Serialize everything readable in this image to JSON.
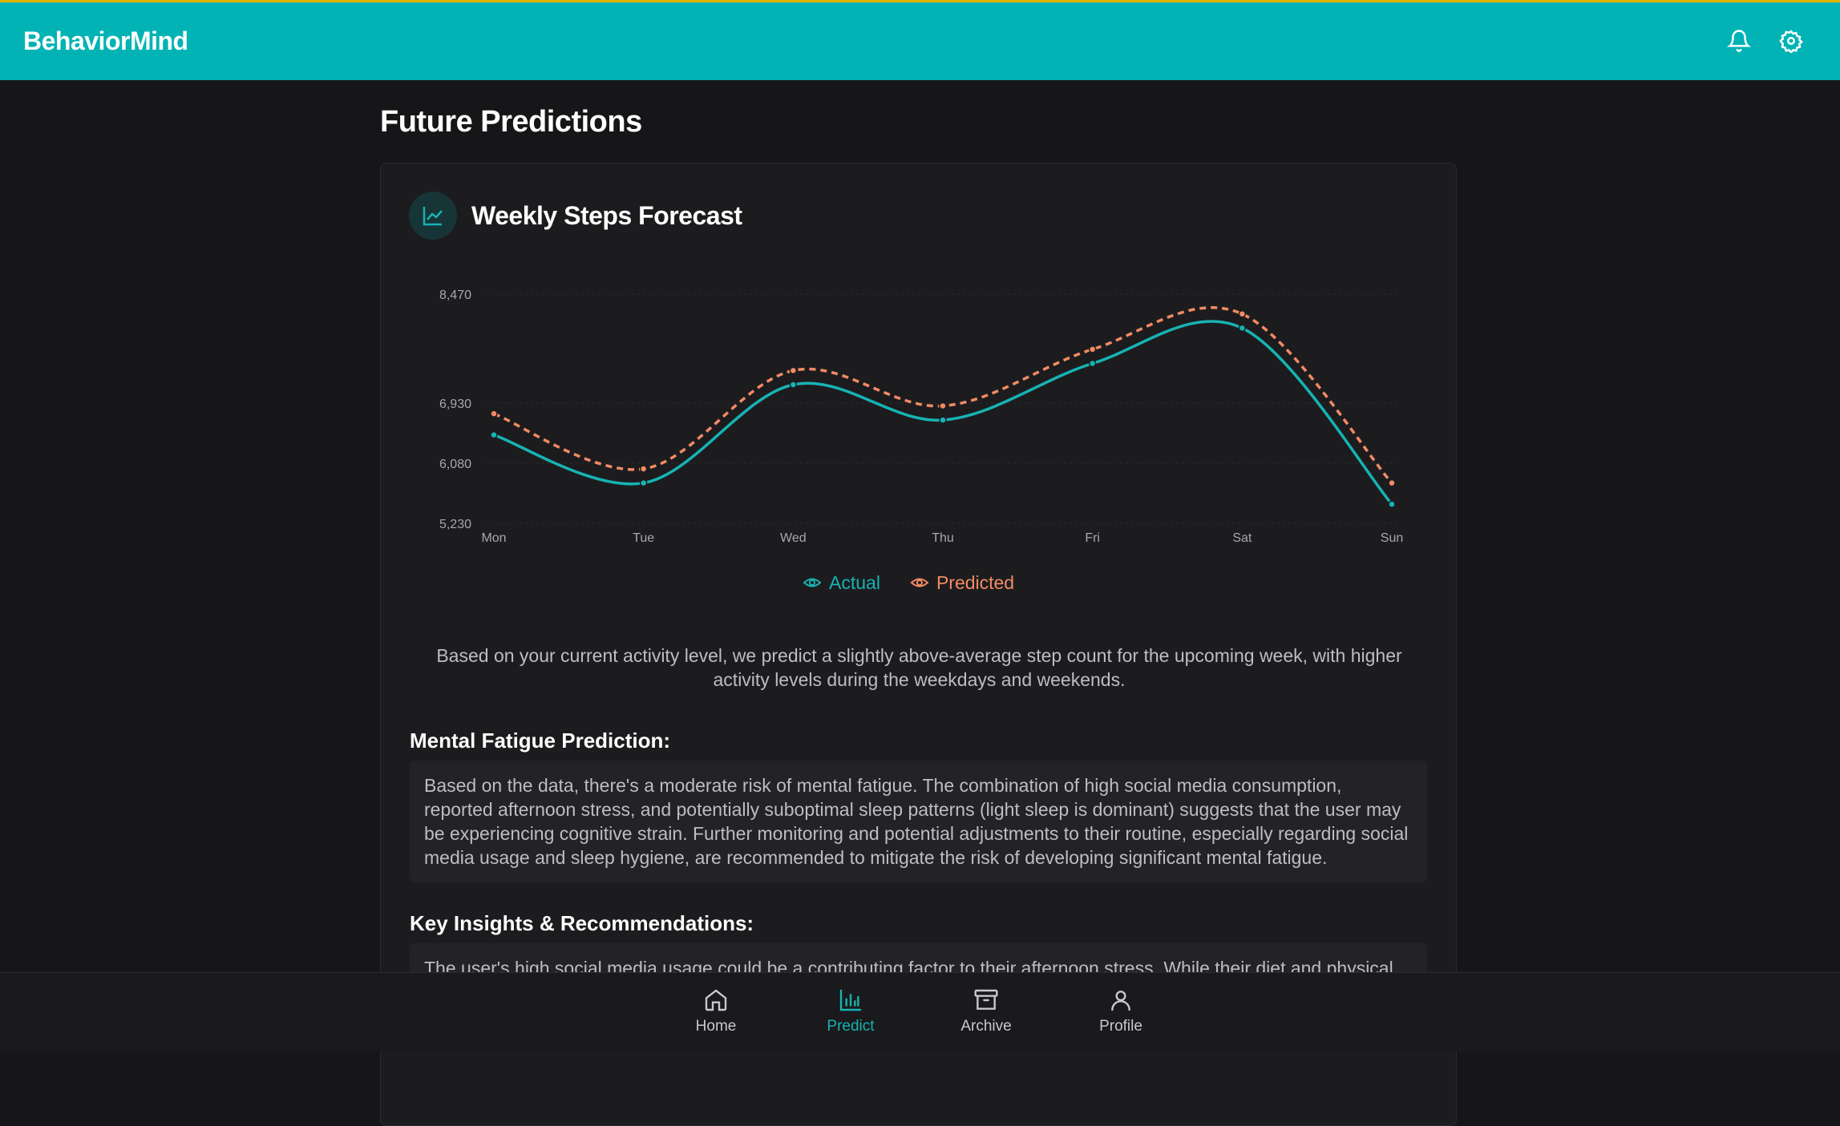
{
  "header": {
    "brand": "BehaviorMind"
  },
  "page_title": "Future Predictions",
  "card": {
    "title": "Weekly Steps Forecast",
    "summary": "Based on your current activity level, we predict a slightly above-average step count for the upcoming week, with higher activity levels during the weekdays and weekends.",
    "sections": [
      {
        "heading": "Mental Fatigue Prediction:",
        "text": "Based on the data, there's a moderate risk of mental fatigue. The combination of high social media consumption, reported afternoon stress, and potentially suboptimal sleep patterns (light sleep is dominant) suggests that the user may be experiencing cognitive strain. Further monitoring and potential adjustments to their routine, especially regarding social media usage and sleep hygiene, are recommended to mitigate the risk of developing significant mental fatigue."
      },
      {
        "heading": "Key Insights & Recommendations:",
        "text": "The user's high social media usage could be a contributing factor to their afternoon stress. While their diet and physical"
      }
    ]
  },
  "chart_data": {
    "type": "line",
    "categories": [
      "Mon",
      "Tue",
      "Wed",
      "Thu",
      "Fri",
      "Sat",
      "Sun"
    ],
    "series": [
      {
        "name": "Actual",
        "color": "#17b3b3",
        "dashed": false,
        "values": [
          6480,
          5800,
          7190,
          6690,
          7490,
          7990,
          5500
        ]
      },
      {
        "name": "Predicted",
        "color": "#f28a64",
        "dashed": true,
        "values": [
          6780,
          6000,
          7390,
          6890,
          7690,
          8190,
          5800
        ]
      }
    ],
    "ylim": [
      5230,
      8470
    ],
    "yticks": [
      {
        "value": 5230,
        "label": "5,230"
      },
      {
        "value": 6080,
        "label": "6,080"
      },
      {
        "value": 6930,
        "label": "6,930"
      },
      {
        "value": 8470,
        "label": "8,470"
      }
    ],
    "grid": true
  },
  "nav": {
    "active": 1,
    "items": [
      "Home",
      "Predict",
      "Archive",
      "Profile"
    ]
  }
}
